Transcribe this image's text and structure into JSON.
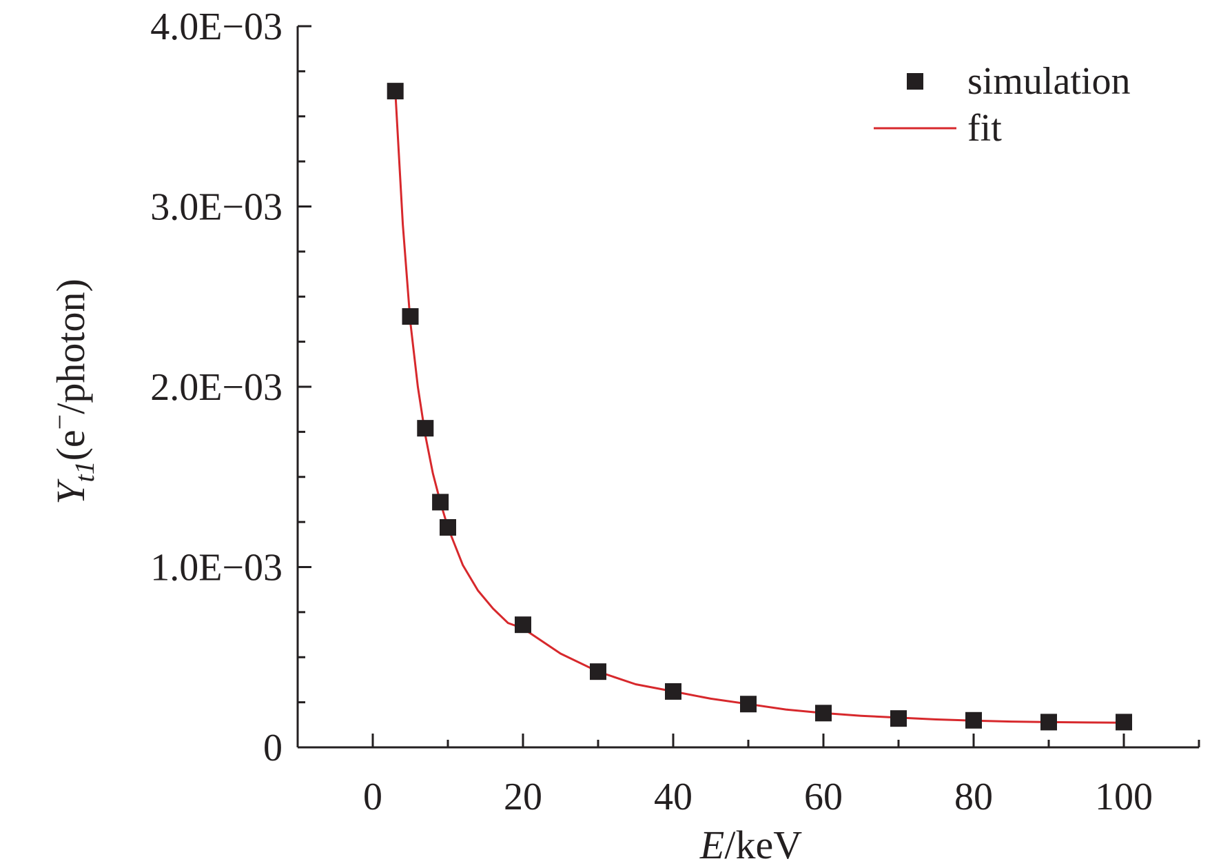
{
  "chart_data": {
    "type": "scatter",
    "title": "",
    "xlabel": {
      "var": "E",
      "unit": "/keV"
    },
    "ylabel": {
      "var": "Y",
      "sub": "t1",
      "unit_open": "(e",
      "sup": "−",
      "unit_close": "/photon)"
    },
    "xlim": [
      -10,
      110
    ],
    "ylim": [
      0,
      0.004
    ],
    "x_ticks": [
      0,
      20,
      40,
      60,
      80,
      100
    ],
    "x_tick_labels": [
      "0",
      "20",
      "40",
      "60",
      "80",
      "100"
    ],
    "y_ticks": [
      0,
      0.001,
      0.002,
      0.003,
      0.004
    ],
    "y_tick_labels": [
      "0",
      "1.0E−03",
      "2.0E−03",
      "3.0E−03",
      "4.0E−03"
    ],
    "grid": false,
    "legend": {
      "position": "top-right"
    },
    "colors": {
      "simulation": "#231f20",
      "fit": "#d7282c",
      "axis": "#231f20"
    },
    "series": [
      {
        "name": "simulation",
        "kind": "scatter",
        "marker": "square",
        "x": [
          3,
          5,
          7,
          9,
          10,
          20,
          30,
          40,
          50,
          60,
          70,
          80,
          90,
          100
        ],
        "y": [
          0.00364,
          0.00239,
          0.00177,
          0.00136,
          0.00122,
          0.00068,
          0.00042,
          0.00031,
          0.00024,
          0.00019,
          0.00016,
          0.00015,
          0.00014,
          0.00014
        ]
      },
      {
        "name": "fit",
        "kind": "line",
        "x": [
          3,
          4,
          5,
          6,
          7,
          8,
          9,
          10,
          12,
          14,
          16,
          18,
          20,
          25,
          30,
          35,
          40,
          45,
          50,
          55,
          60,
          65,
          70,
          75,
          80,
          85,
          90,
          95,
          100
        ],
        "y": [
          0.00364,
          0.0029,
          0.00236,
          0.002,
          0.00173,
          0.00152,
          0.00136,
          0.00122,
          0.00101,
          0.00087,
          0.00077,
          0.00069,
          0.00066,
          0.00052,
          0.00042,
          0.00035,
          0.00031,
          0.00027,
          0.00024,
          0.00021,
          0.00019,
          0.000175,
          0.000165,
          0.000155,
          0.000148,
          0.000143,
          0.00014,
          0.000138,
          0.000137
        ]
      }
    ]
  }
}
